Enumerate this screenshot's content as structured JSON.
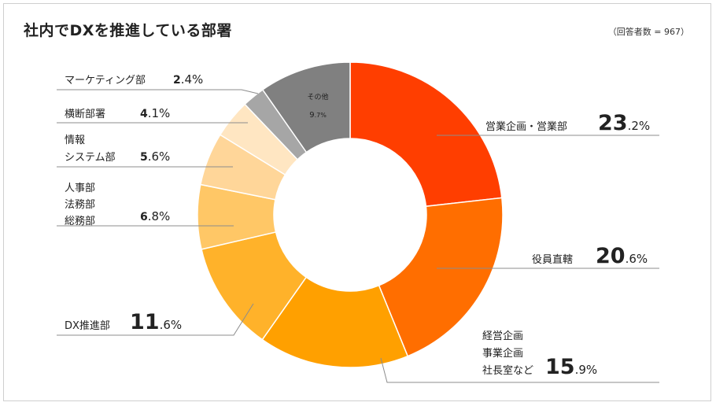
{
  "title": "社内でDXを推進している部署",
  "note": "（回答者数 = 967）",
  "chart_data": {
    "type": "donut",
    "title": "社内でDXを推進している部署",
    "unit": "%",
    "slices": [
      {
        "label_lines": [
          "営業企画・営業部"
        ],
        "value": 23.2,
        "int": "23",
        "dec": ".2%",
        "color": "#ff3e00"
      },
      {
        "label_lines": [
          "役員直轄"
        ],
        "value": 20.6,
        "int": "20",
        "dec": ".6%",
        "color": "#ff6e00"
      },
      {
        "label_lines": [
          "経営企画",
          "事業企画",
          "社長室など"
        ],
        "value": 15.9,
        "int": "15",
        "dec": ".9%",
        "color": "#ffa000"
      },
      {
        "label_lines": [
          "DX推進部"
        ],
        "value": 11.6,
        "int": "11",
        "dec": ".6%",
        "color": "#ffb22a"
      },
      {
        "label_lines": [
          "人事部",
          "法務部",
          "総務部"
        ],
        "value": 6.8,
        "int": "6",
        "dec": ".8%",
        "color": "#ffc766"
      },
      {
        "label_lines": [
          "情報",
          "システム部"
        ],
        "value": 5.6,
        "int": "5",
        "dec": ".6%",
        "color": "#ffd699"
      },
      {
        "label_lines": [
          "横断部署"
        ],
        "value": 4.1,
        "int": "4",
        "dec": ".1%",
        "color": "#ffe6c2"
      },
      {
        "label_lines": [
          "マーケティング部"
        ],
        "value": 2.4,
        "int": "2",
        "dec": ".4%",
        "color": "#a6a6a6"
      },
      {
        "label_lines": [
          "その他"
        ],
        "value": 9.7,
        "int": "9",
        "dec": ".7%",
        "color": "#808080"
      }
    ]
  }
}
